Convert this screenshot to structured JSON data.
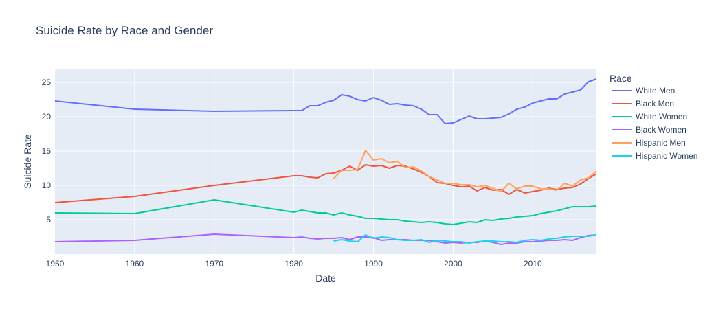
{
  "chart_data": {
    "type": "line",
    "title": "Suicide Rate by Race and Gender",
    "xlabel": "Date",
    "ylabel": "Suicide Rate",
    "xlim": [
      1950,
      2018
    ],
    "ylim": [
      0,
      27
    ],
    "xticks": [
      1950,
      1960,
      1970,
      1980,
      1990,
      2000,
      2010
    ],
    "yticks": [
      5,
      10,
      15,
      20,
      25
    ],
    "grid": true,
    "legend": {
      "title": "Race",
      "placement": "right"
    },
    "series": [
      {
        "name": "White Men",
        "color": "#636efa",
        "x": [
          1950,
          1960,
          1970,
          1980,
          1981,
          1982,
          1983,
          1984,
          1985,
          1986,
          1987,
          1988,
          1989,
          1990,
          1991,
          1992,
          1993,
          1994,
          1995,
          1996,
          1997,
          1998,
          1999,
          2000,
          2001,
          2002,
          2003,
          2004,
          2005,
          2006,
          2007,
          2008,
          2009,
          2010,
          2011,
          2012,
          2013,
          2014,
          2015,
          2016,
          2017,
          2018
        ],
        "y": [
          22.3,
          21.1,
          20.8,
          20.9,
          20.9,
          21.6,
          21.6,
          22.1,
          22.4,
          23.2,
          23.0,
          22.5,
          22.3,
          22.8,
          22.4,
          21.8,
          21.9,
          21.7,
          21.6,
          21.1,
          20.3,
          20.3,
          19.0,
          19.1,
          19.6,
          20.1,
          19.7,
          19.7,
          19.8,
          19.9,
          20.4,
          21.1,
          21.4,
          22.0,
          22.3,
          22.6,
          22.6,
          23.3,
          23.6,
          23.9,
          25.1,
          25.5
        ]
      },
      {
        "name": "Black Men",
        "color": "#ef553b",
        "x": [
          1950,
          1960,
          1970,
          1980,
          1981,
          1982,
          1983,
          1984,
          1985,
          1986,
          1987,
          1988,
          1989,
          1990,
          1991,
          1992,
          1993,
          1994,
          1995,
          1996,
          1997,
          1998,
          1999,
          2000,
          2001,
          2002,
          2003,
          2004,
          2005,
          2006,
          2007,
          2008,
          2009,
          2010,
          2011,
          2012,
          2013,
          2014,
          2015,
          2016,
          2017,
          2018
        ],
        "y": [
          7.5,
          8.4,
          10.0,
          11.4,
          11.4,
          11.2,
          11.1,
          11.7,
          11.8,
          12.2,
          12.8,
          12.2,
          13.0,
          12.8,
          12.9,
          12.5,
          12.9,
          12.8,
          12.4,
          11.9,
          11.3,
          10.4,
          10.3,
          10.0,
          9.8,
          9.9,
          9.2,
          9.7,
          9.3,
          9.4,
          8.7,
          9.4,
          8.9,
          9.1,
          9.3,
          9.6,
          9.4,
          9.6,
          9.7,
          10.2,
          11.0,
          11.7
        ]
      },
      {
        "name": "White Women",
        "color": "#00cc96",
        "x": [
          1950,
          1960,
          1970,
          1980,
          1981,
          1982,
          1983,
          1984,
          1985,
          1986,
          1987,
          1988,
          1989,
          1990,
          1991,
          1992,
          1993,
          1994,
          1995,
          1996,
          1997,
          1998,
          1999,
          2000,
          2001,
          2002,
          2003,
          2004,
          2005,
          2006,
          2007,
          2008,
          2009,
          2010,
          2011,
          2012,
          2013,
          2014,
          2015,
          2016,
          2017,
          2018
        ],
        "y": [
          6.0,
          5.9,
          7.9,
          6.1,
          6.4,
          6.2,
          6.0,
          6.0,
          5.7,
          6.0,
          5.7,
          5.5,
          5.2,
          5.2,
          5.1,
          5.0,
          5.0,
          4.8,
          4.7,
          4.6,
          4.7,
          4.6,
          4.4,
          4.3,
          4.5,
          4.7,
          4.6,
          5.0,
          4.9,
          5.1,
          5.2,
          5.4,
          5.5,
          5.6,
          5.9,
          6.1,
          6.3,
          6.6,
          6.9,
          6.9,
          6.9,
          7.0
        ]
      },
      {
        "name": "Black Women",
        "color": "#ab63fa",
        "x": [
          1950,
          1960,
          1970,
          1980,
          1981,
          1982,
          1983,
          1984,
          1985,
          1986,
          1987,
          1988,
          1989,
          1990,
          1991,
          1992,
          1993,
          1994,
          1995,
          1996,
          1997,
          1998,
          1999,
          2000,
          2001,
          2002,
          2003,
          2004,
          2005,
          2006,
          2007,
          2008,
          2009,
          2010,
          2011,
          2012,
          2013,
          2014,
          2015,
          2016,
          2017,
          2018
        ],
        "y": [
          1.8,
          2.0,
          2.9,
          2.4,
          2.5,
          2.3,
          2.2,
          2.3,
          2.3,
          2.4,
          2.1,
          2.5,
          2.5,
          2.4,
          2.0,
          2.1,
          2.1,
          2.1,
          2.0,
          2.0,
          2.0,
          1.8,
          1.6,
          1.7,
          1.6,
          1.7,
          1.7,
          1.9,
          1.7,
          1.4,
          1.6,
          1.6,
          1.8,
          1.8,
          1.9,
          2.0,
          2.0,
          2.1,
          2.0,
          2.4,
          2.7,
          2.8
        ]
      },
      {
        "name": "Hispanic Men",
        "color": "#ffa15a",
        "x": [
          1985,
          1986,
          1987,
          1988,
          1989,
          1990,
          1991,
          1992,
          1993,
          1994,
          1995,
          1996,
          1997,
          1998,
          1999,
          2000,
          2001,
          2002,
          2003,
          2004,
          2005,
          2006,
          2007,
          2008,
          2009,
          2010,
          2011,
          2012,
          2013,
          2014,
          2015,
          2016,
          2017,
          2018
        ],
        "y": [
          11.0,
          12.2,
          12.2,
          12.3,
          15.1,
          13.7,
          13.9,
          13.3,
          13.5,
          12.6,
          12.7,
          12.1,
          11.3,
          10.8,
          10.3,
          10.3,
          10.1,
          10.1,
          9.8,
          10.0,
          9.6,
          9.1,
          10.3,
          9.5,
          9.9,
          9.9,
          9.5,
          9.5,
          9.3,
          10.3,
          9.9,
          10.8,
          11.1,
          12.1
        ]
      },
      {
        "name": "Hispanic Women",
        "color": "#19d3f3",
        "x": [
          1985,
          1986,
          1987,
          1988,
          1989,
          1990,
          1991,
          1992,
          1993,
          1994,
          1995,
          1996,
          1997,
          1998,
          1999,
          2000,
          2001,
          2002,
          2003,
          2004,
          2005,
          2006,
          2007,
          2008,
          2009,
          2010,
          2011,
          2012,
          2013,
          2014,
          2015,
          2016,
          2017,
          2018
        ],
        "y": [
          1.9,
          2.1,
          1.9,
          1.8,
          2.8,
          2.3,
          2.5,
          2.4,
          2.1,
          2.0,
          2.0,
          2.1,
          1.7,
          2.0,
          1.9,
          1.8,
          1.8,
          1.6,
          1.8,
          1.9,
          1.9,
          1.8,
          1.8,
          1.7,
          2.0,
          2.1,
          2.0,
          2.2,
          2.3,
          2.5,
          2.6,
          2.6,
          2.6,
          2.8
        ]
      }
    ]
  }
}
